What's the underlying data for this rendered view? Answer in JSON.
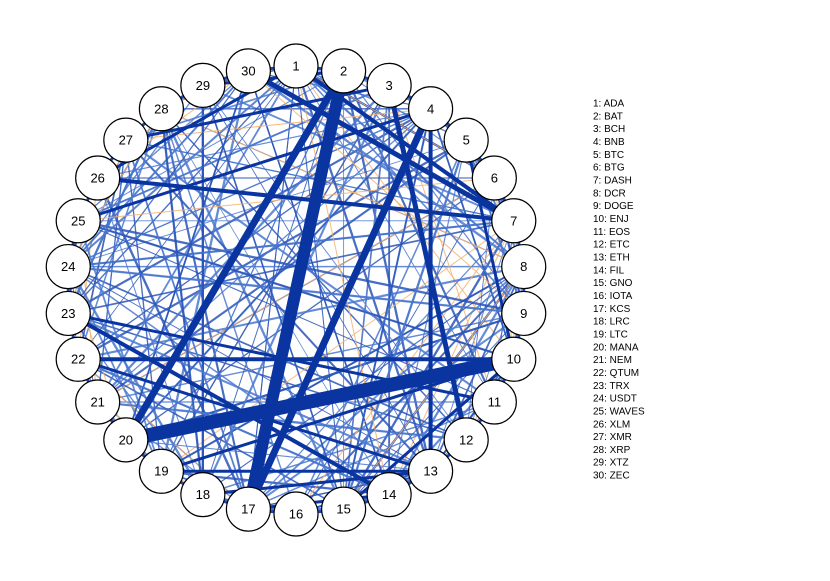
{
  "nodes": [
    "1",
    "2",
    "3",
    "4",
    "5",
    "6",
    "7",
    "8",
    "9",
    "10",
    "11",
    "12",
    "13",
    "14",
    "15",
    "16",
    "17",
    "18",
    "19",
    "20",
    "21",
    "22",
    "23",
    "24",
    "25",
    "26",
    "27",
    "28",
    "29",
    "30"
  ],
  "legend": [
    "1: ADA",
    "2: BAT",
    "3: BCH",
    "4: BNB",
    "5: BTC",
    "6: BTG",
    "7: DASH",
    "8: DCR",
    "9: DOGE",
    "10: ENJ",
    "11: EOS",
    "12: ETC",
    "13: ETH",
    "14: FIL",
    "15: GNO",
    "16: IOTA",
    "17: KCS",
    "18: LRC",
    "19: LTC",
    "20: MANA",
    "21: NEM",
    "22: QTUM",
    "23: TRX",
    "24: USDT",
    "25: WAVES",
    "26: XLM",
    "27: XMR",
    "28: XRP",
    "29: XTZ",
    "30: ZEC"
  ]
}
